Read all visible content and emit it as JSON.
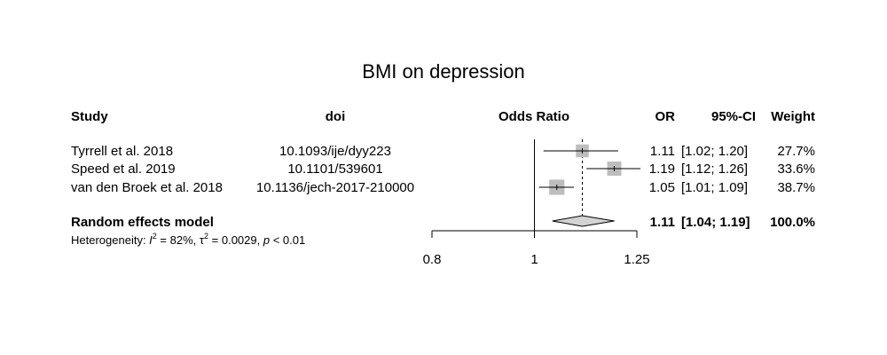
{
  "chart_data": {
    "type": "forest",
    "title": "BMI on depression",
    "columns": {
      "study": "Study",
      "doi": "doi",
      "effect": "Odds Ratio",
      "or": "OR",
      "ci": "95%-CI",
      "weight": "Weight"
    },
    "studies": [
      {
        "study": "Tyrrell et al. 2018",
        "doi": "10.1093/ije/dyy223",
        "or": 1.11,
        "lower": 1.02,
        "upper": 1.2,
        "or_text": "1.11",
        "ci_text": "[1.02; 1.20]",
        "weight_text": "27.7%",
        "weight": 27.7
      },
      {
        "study": "Speed et al. 2019",
        "doi": "10.1101/539601",
        "or": 1.19,
        "lower": 1.12,
        "upper": 1.26,
        "or_text": "1.19",
        "ci_text": "[1.12; 1.26]",
        "weight_text": "33.6%",
        "weight": 33.6
      },
      {
        "study": "van den Broek et al. 2018",
        "doi": "10.1136/jech-2017-210000",
        "or": 1.05,
        "lower": 1.01,
        "upper": 1.09,
        "or_text": "1.05",
        "ci_text": "[1.01; 1.09]",
        "weight_text": "38.7%",
        "weight": 38.7
      }
    ],
    "pooled": {
      "label": "Random effects model",
      "or": 1.11,
      "lower": 1.04,
      "upper": 1.19,
      "or_text": "1.11",
      "ci_text": "[1.04; 1.19]",
      "weight_text": "100.0%"
    },
    "heterogeneity": {
      "prefix": "Heterogeneity: ",
      "i2_symbol": "I",
      "i2_value": " = 82%, ",
      "tau2_symbol": "τ",
      "tau2_value": " = 0.0029, ",
      "p_symbol": "p",
      "p_value": " < 0.01"
    },
    "x_axis": {
      "scale": "log",
      "xlim": [
        0.8,
        1.25
      ],
      "ticks": [
        0.8,
        1,
        1.25
      ],
      "tick_labels": [
        "0.8",
        "1",
        "1.25"
      ],
      "reference_line": 1
    },
    "colors": {
      "square": "#bdbdbd",
      "diamond": "#d3d3d3",
      "line": "#000000"
    }
  }
}
